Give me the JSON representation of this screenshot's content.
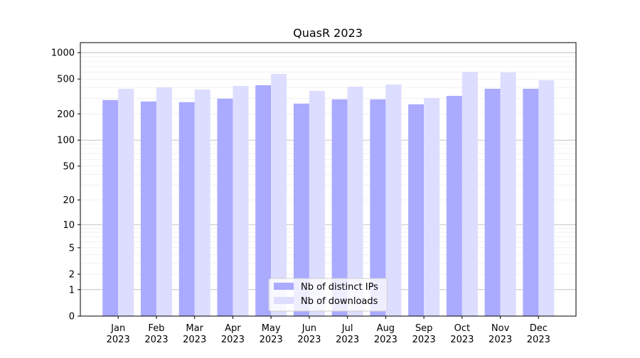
{
  "chart_data": {
    "type": "bar",
    "title": "QuasR 2023",
    "xlabel": "",
    "ylabel": "",
    "yscale": "log(y+1)",
    "ylim": [
      0,
      1300
    ],
    "yticks": [
      0,
      1,
      2,
      5,
      10,
      20,
      50,
      100,
      200,
      500,
      1000
    ],
    "grid": true,
    "legend_position": "bottom-center",
    "categories": [
      [
        "Jan",
        "2023"
      ],
      [
        "Feb",
        "2023"
      ],
      [
        "Mar",
        "2023"
      ],
      [
        "Apr",
        "2023"
      ],
      [
        "May",
        "2023"
      ],
      [
        "Jun",
        "2023"
      ],
      [
        "Jul",
        "2023"
      ],
      [
        "Aug",
        "2023"
      ],
      [
        "Sep",
        "2023"
      ],
      [
        "Oct",
        "2023"
      ],
      [
        "Nov",
        "2023"
      ],
      [
        "Dec",
        "2023"
      ]
    ],
    "series": [
      {
        "name": "Nb of distinct IPs",
        "color": "#aaaaff",
        "values": [
          288,
          277,
          272,
          298,
          425,
          262,
          293,
          293,
          257,
          321,
          387,
          387
        ]
      },
      {
        "name": "Nb of downloads",
        "color": "#ddddff",
        "values": [
          387,
          402,
          380,
          417,
          572,
          366,
          409,
          433,
          304,
          605,
          594,
          484
        ]
      }
    ]
  }
}
